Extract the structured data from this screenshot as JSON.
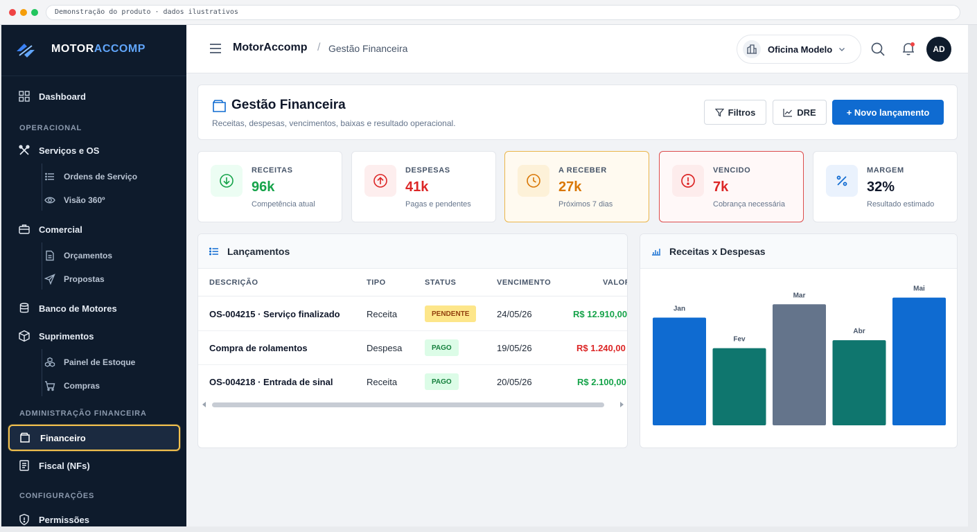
{
  "browser": {
    "url_text": "Demonstração do produto · dados ilustrativos"
  },
  "brand": {
    "name_a": "MOTOR",
    "name_b": "ACCOMP"
  },
  "sidebar": {
    "dashboard": "Dashboard",
    "section_operacional": "OPERACIONAL",
    "servicos": "Serviços e OS",
    "ordens": "Ordens de Serviço",
    "visao": "Visão 360º",
    "comercial": "Comercial",
    "orcamentos": "Orçamentos",
    "propostas": "Propostas",
    "banco": "Banco de Motores",
    "suprimentos": "Suprimentos",
    "painel_estoque": "Painel de Estoque",
    "compras": "Compras",
    "section_admin": "ADMINISTRAÇÃO FINANCEIRA",
    "financeiro": "Financeiro",
    "fiscal": "Fiscal (NFs)",
    "section_config": "CONFIGURAÇÕES",
    "permissoes": "Permissões"
  },
  "topbar": {
    "app": "MotorAccomp",
    "separator": "/",
    "page": "Gestão Financeira",
    "workshop": "Oficina Modelo",
    "avatar": "AD"
  },
  "header": {
    "title": "Gestão Financeira",
    "subtitle": "Receitas, despesas, vencimentos, baixas e resultado operacional.",
    "filters": "Filtros",
    "dre": "DRE",
    "new_entry": "+ Novo lançamento"
  },
  "stats": [
    {
      "label": "RECEITAS",
      "value": "96k",
      "hint": "Competência atual",
      "color": "#16a34a"
    },
    {
      "label": "DESPESAS",
      "value": "41k",
      "hint": "Pagas e pendentes",
      "color": "#dc2626"
    },
    {
      "label": "A RECEBER",
      "value": "27k",
      "hint": "Próximos 7 dias",
      "color": "#d97706"
    },
    {
      "label": "VENCIDO",
      "value": "7k",
      "hint": "Cobrança necessária",
      "color": "#dc2626"
    },
    {
      "label": "MARGEM",
      "value": "32%",
      "hint": "Resultado estimado",
      "color": "#0f172a"
    }
  ],
  "table": {
    "title": "Lançamentos",
    "columns": [
      "DESCRIÇÃO",
      "TIPO",
      "STATUS",
      "VENCIMENTO",
      "VALOR"
    ],
    "rows": [
      {
        "desc": "OS-004215 · Serviço finalizado",
        "type": "Receita",
        "status": "PENDENTE",
        "due": "24/05/26",
        "value": "R$ 12.910,00",
        "value_color": "#16a34a"
      },
      {
        "desc": "Compra de rolamentos",
        "type": "Despesa",
        "status": "PAGO",
        "due": "19/05/26",
        "value": "R$ 1.240,00",
        "value_color": "#dc2626"
      },
      {
        "desc": "OS-004218 · Entrada de sinal",
        "type": "Receita",
        "status": "PAGO",
        "due": "20/05/26",
        "value": "R$ 2.100,00",
        "value_color": "#16a34a"
      }
    ]
  },
  "chart": {
    "title": "Receitas x Despesas"
  },
  "chart_data": {
    "type": "bar",
    "title": "Receitas x Despesas",
    "categories": [
      "Jan",
      "Fev",
      "Mar",
      "Abr",
      "Mai"
    ],
    "values": [
      81,
      58,
      91,
      64,
      96
    ],
    "colors": [
      "#0f6bd1",
      "#0f766e",
      "#64748b",
      "#0f766e",
      "#0f6bd1"
    ],
    "ylim": [
      0,
      100
    ],
    "grid": false
  }
}
